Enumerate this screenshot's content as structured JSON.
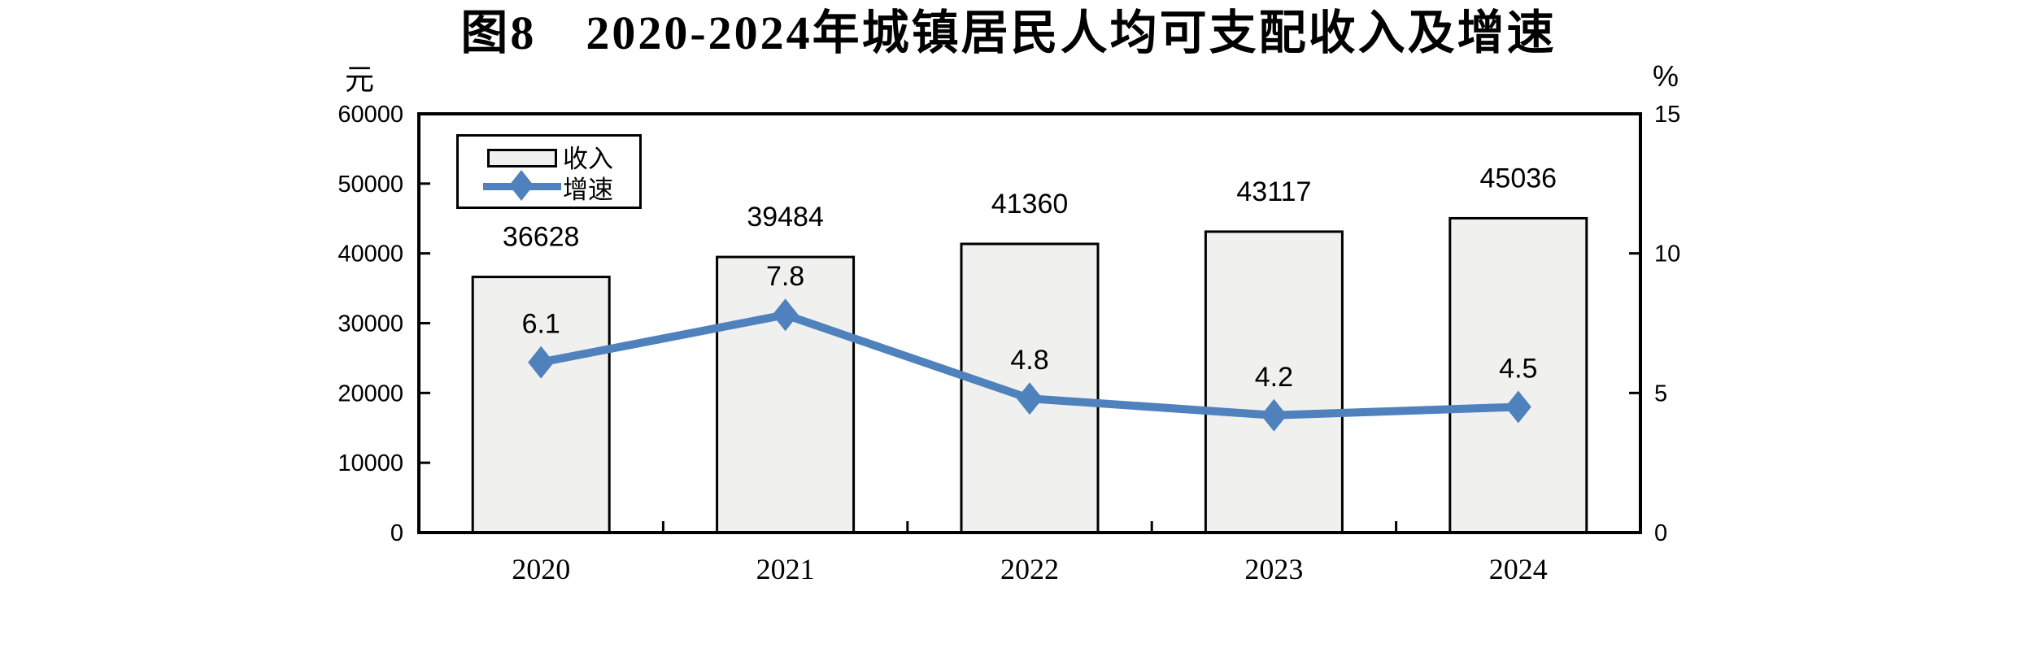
{
  "title": "图8　2020-2024年城镇居民人均可支配收入及增速",
  "axes": {
    "left_unit": "元",
    "right_unit": "%"
  },
  "legend": {
    "items": [
      {
        "label": "收入",
        "type": "bar"
      },
      {
        "label": "增速",
        "type": "line"
      }
    ]
  },
  "chart_data": {
    "type": "bar+line",
    "title": "图8　2020-2024年城镇居民人均可支配收入及增速",
    "categories": [
      "2020",
      "2021",
      "2022",
      "2023",
      "2024"
    ],
    "series": [
      {
        "name": "收入",
        "type": "bar",
        "axis": "left",
        "unit": "元",
        "values": [
          36628,
          39484,
          41360,
          43117,
          45036
        ]
      },
      {
        "name": "增速",
        "type": "line",
        "axis": "right",
        "unit": "%",
        "values": [
          6.1,
          7.8,
          4.8,
          4.2,
          4.5
        ]
      }
    ],
    "left_axis": {
      "unit": "元",
      "min": 0,
      "max": 60000,
      "ticks": [
        60000,
        50000,
        40000,
        30000,
        20000,
        10000,
        0
      ]
    },
    "right_axis": {
      "unit": "%",
      "min": 0,
      "max": 15,
      "ticks": [
        15,
        10,
        5,
        0
      ]
    },
    "grid": false,
    "legend_position": "top-left-inside",
    "colors": {
      "bar_fill": "#f0f0ef",
      "bar_border": "#000000",
      "line": "#4f81bd"
    }
  }
}
